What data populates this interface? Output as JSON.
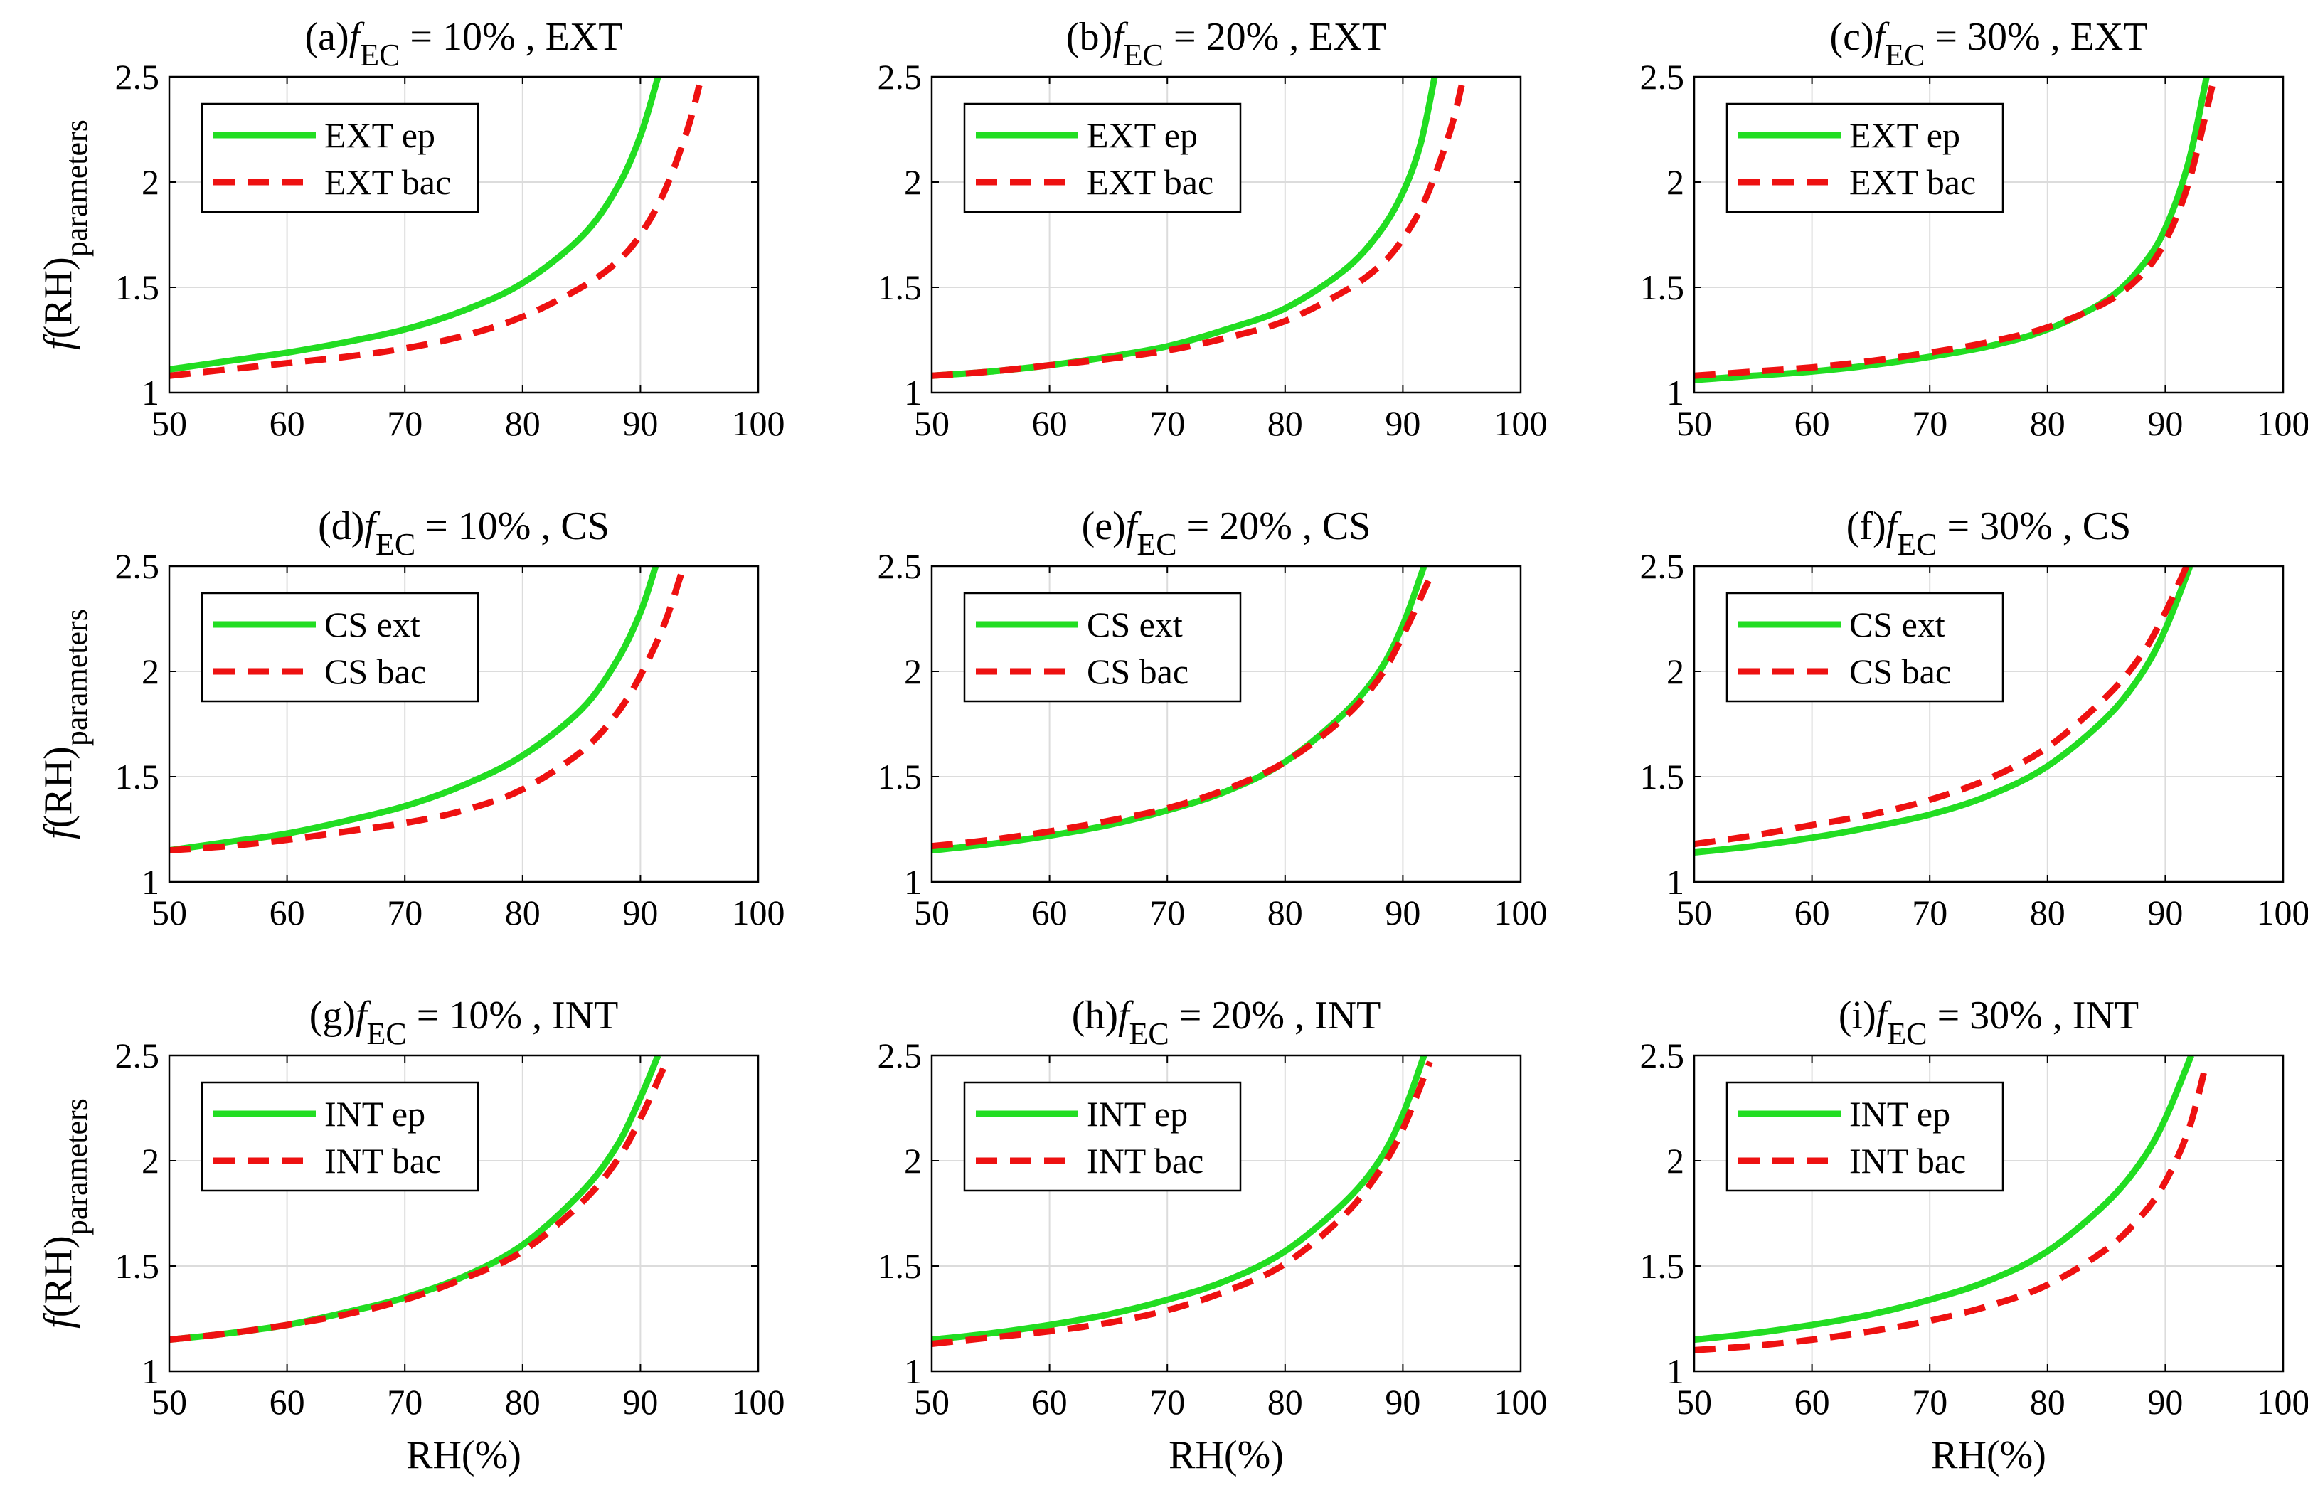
{
  "figure": {
    "x_axis_label": "RH(%)",
    "y_axis_label_main": "f(RH)",
    "y_axis_label_sub": "parameters"
  },
  "chart_data": [
    {
      "type": "line",
      "title_prefix": "(a)",
      "title_var": "f",
      "title_sub": "EC",
      "title_suffix": " = 10% , EXT",
      "xlim": [
        50,
        100
      ],
      "ylim": [
        1,
        2.5
      ],
      "xticks": [
        "50",
        "60",
        "70",
        "80",
        "90",
        "100"
      ],
      "yticks": [
        "1",
        "1.5",
        "2",
        "2.5"
      ],
      "grid": true,
      "legend_position": "top-left",
      "series": [
        {
          "name": "EXT ep",
          "color": "#22dd22",
          "style": "solid",
          "x": [
            50,
            55,
            60,
            65,
            70,
            75,
            80,
            85,
            88,
            90,
            91.5
          ],
          "y": [
            1.11,
            1.15,
            1.19,
            1.24,
            1.3,
            1.39,
            1.52,
            1.74,
            1.97,
            2.22,
            2.5
          ]
        },
        {
          "name": "EXT bac",
          "color": "#ee1111",
          "style": "dashed",
          "x": [
            50,
            55,
            60,
            65,
            70,
            75,
            80,
            85,
            88,
            90,
            92,
            94,
            95
          ],
          "y": [
            1.08,
            1.11,
            1.14,
            1.17,
            1.21,
            1.27,
            1.36,
            1.5,
            1.62,
            1.75,
            1.95,
            2.25,
            2.46
          ]
        }
      ]
    },
    {
      "type": "line",
      "title_prefix": "(b)",
      "title_var": "f",
      "title_sub": "EC",
      "title_suffix": " = 20% , EXT",
      "xlim": [
        50,
        100
      ],
      "ylim": [
        1,
        2.5
      ],
      "xticks": [
        "50",
        "60",
        "70",
        "80",
        "90",
        "100"
      ],
      "yticks": [
        "1",
        "1.5",
        "2",
        "2.5"
      ],
      "grid": true,
      "legend_position": "top-left",
      "series": [
        {
          "name": "EXT ep",
          "color": "#22dd22",
          "style": "solid",
          "x": [
            50,
            55,
            60,
            65,
            70,
            75,
            80,
            85,
            88,
            90,
            91.5,
            92.7
          ],
          "y": [
            1.08,
            1.1,
            1.13,
            1.17,
            1.22,
            1.3,
            1.4,
            1.58,
            1.76,
            1.95,
            2.18,
            2.5
          ]
        },
        {
          "name": "EXT bac",
          "color": "#ee1111",
          "style": "dashed",
          "x": [
            50,
            55,
            60,
            65,
            70,
            75,
            80,
            85,
            88,
            90,
            92,
            94,
            95
          ],
          "y": [
            1.08,
            1.1,
            1.13,
            1.16,
            1.2,
            1.26,
            1.34,
            1.48,
            1.6,
            1.73,
            1.93,
            2.24,
            2.46
          ]
        }
      ]
    },
    {
      "type": "line",
      "title_prefix": "(c)",
      "title_var": "f",
      "title_sub": "EC",
      "title_suffix": " = 30% , EXT",
      "xlim": [
        50,
        100
      ],
      "ylim": [
        1,
        2.5
      ],
      "xticks": [
        "50",
        "60",
        "70",
        "80",
        "90",
        "100"
      ],
      "yticks": [
        "1",
        "1.5",
        "2",
        "2.5"
      ],
      "grid": true,
      "legend_position": "top-left",
      "series": [
        {
          "name": "EXT ep",
          "color": "#22dd22",
          "style": "solid",
          "x": [
            50,
            55,
            60,
            65,
            70,
            75,
            80,
            85,
            88,
            90,
            92,
            93.5
          ],
          "y": [
            1.06,
            1.08,
            1.1,
            1.13,
            1.17,
            1.22,
            1.3,
            1.44,
            1.6,
            1.78,
            2.1,
            2.5
          ]
        },
        {
          "name": "EXT bac",
          "color": "#ee1111",
          "style": "dashed",
          "x": [
            50,
            55,
            60,
            65,
            70,
            75,
            80,
            85,
            88,
            90,
            92,
            94
          ],
          "y": [
            1.08,
            1.1,
            1.12,
            1.15,
            1.19,
            1.24,
            1.31,
            1.43,
            1.56,
            1.72,
            2.0,
            2.46
          ]
        }
      ]
    },
    {
      "type": "line",
      "title_prefix": "(d)",
      "title_var": "f",
      "title_sub": "EC",
      "title_suffix": " = 10% , CS",
      "xlim": [
        50,
        100
      ],
      "ylim": [
        1,
        2.5
      ],
      "xticks": [
        "50",
        "60",
        "70",
        "80",
        "90",
        "100"
      ],
      "yticks": [
        "1",
        "1.5",
        "2",
        "2.5"
      ],
      "grid": true,
      "legend_position": "top-left",
      "series": [
        {
          "name": "CS ext",
          "color": "#22dd22",
          "style": "solid",
          "x": [
            50,
            55,
            60,
            65,
            70,
            75,
            80,
            85,
            88,
            90,
            91.3
          ],
          "y": [
            1.15,
            1.19,
            1.23,
            1.29,
            1.36,
            1.46,
            1.6,
            1.82,
            2.05,
            2.28,
            2.5
          ]
        },
        {
          "name": "CS bac",
          "color": "#ee1111",
          "style": "dashed",
          "x": [
            50,
            55,
            60,
            65,
            70,
            75,
            80,
            85,
            88,
            90,
            92,
            93.5
          ],
          "y": [
            1.15,
            1.17,
            1.2,
            1.24,
            1.28,
            1.34,
            1.44,
            1.62,
            1.8,
            1.98,
            2.22,
            2.47
          ]
        }
      ]
    },
    {
      "type": "line",
      "title_prefix": "(e)",
      "title_var": "f",
      "title_sub": "EC",
      "title_suffix": " = 20% , CS",
      "xlim": [
        50,
        100
      ],
      "ylim": [
        1,
        2.5
      ],
      "xticks": [
        "50",
        "60",
        "70",
        "80",
        "90",
        "100"
      ],
      "yticks": [
        "1",
        "1.5",
        "2",
        "2.5"
      ],
      "grid": true,
      "legend_position": "top-left",
      "series": [
        {
          "name": "CS ext",
          "color": "#22dd22",
          "style": "solid",
          "x": [
            50,
            55,
            60,
            65,
            70,
            75,
            80,
            85,
            88,
            90,
            91.8
          ],
          "y": [
            1.15,
            1.18,
            1.22,
            1.27,
            1.34,
            1.43,
            1.57,
            1.8,
            2.0,
            2.22,
            2.5
          ]
        },
        {
          "name": "CS bac",
          "color": "#ee1111",
          "style": "dashed",
          "x": [
            50,
            55,
            60,
            65,
            70,
            75,
            80,
            85,
            88,
            90,
            92.5
          ],
          "y": [
            1.17,
            1.2,
            1.24,
            1.29,
            1.35,
            1.44,
            1.57,
            1.78,
            1.97,
            2.17,
            2.47
          ]
        }
      ]
    },
    {
      "type": "line",
      "title_prefix": "(f)",
      "title_var": "f",
      "title_sub": "EC",
      "title_suffix": " = 30% , CS",
      "xlim": [
        50,
        100
      ],
      "ylim": [
        1,
        2.5
      ],
      "xticks": [
        "50",
        "60",
        "70",
        "80",
        "90",
        "100"
      ],
      "yticks": [
        "1",
        "1.5",
        "2",
        "2.5"
      ],
      "grid": true,
      "legend_position": "top-left",
      "series": [
        {
          "name": "CS ext",
          "color": "#22dd22",
          "style": "solid",
          "x": [
            50,
            55,
            60,
            65,
            70,
            75,
            80,
            85,
            88,
            90,
            92.1
          ],
          "y": [
            1.14,
            1.17,
            1.21,
            1.26,
            1.32,
            1.41,
            1.55,
            1.78,
            1.99,
            2.2,
            2.5
          ]
        },
        {
          "name": "CS bac",
          "color": "#ee1111",
          "style": "dashed",
          "x": [
            50,
            55,
            60,
            65,
            70,
            75,
            80,
            85,
            88,
            90,
            91.8
          ],
          "y": [
            1.18,
            1.22,
            1.27,
            1.32,
            1.39,
            1.49,
            1.64,
            1.88,
            2.08,
            2.28,
            2.5
          ]
        }
      ]
    },
    {
      "type": "line",
      "title_prefix": "(g)",
      "title_var": "f",
      "title_sub": "EC",
      "title_suffix": " = 10% , INT",
      "xlim": [
        50,
        100
      ],
      "ylim": [
        1,
        2.5
      ],
      "xticks": [
        "50",
        "60",
        "70",
        "80",
        "90",
        "100"
      ],
      "yticks": [
        "1",
        "1.5",
        "2",
        "2.5"
      ],
      "grid": true,
      "legend_position": "top-left",
      "series": [
        {
          "name": "INT ep",
          "color": "#22dd22",
          "style": "solid",
          "x": [
            50,
            55,
            60,
            65,
            70,
            75,
            80,
            85,
            88,
            90,
            91.5
          ],
          "y": [
            1.15,
            1.18,
            1.22,
            1.28,
            1.35,
            1.45,
            1.6,
            1.85,
            2.07,
            2.3,
            2.5
          ]
        },
        {
          "name": "INT bac",
          "color": "#ee1111",
          "style": "dashed",
          "x": [
            50,
            55,
            60,
            65,
            70,
            75,
            80,
            85,
            88,
            90,
            92.2
          ],
          "y": [
            1.15,
            1.18,
            1.22,
            1.27,
            1.34,
            1.44,
            1.57,
            1.8,
            2.0,
            2.2,
            2.47
          ]
        }
      ]
    },
    {
      "type": "line",
      "title_prefix": "(h)",
      "title_var": "f",
      "title_sub": "EC",
      "title_suffix": " = 20% , INT",
      "xlim": [
        50,
        100
      ],
      "ylim": [
        1,
        2.5
      ],
      "xticks": [
        "50",
        "60",
        "70",
        "80",
        "90",
        "100"
      ],
      "yticks": [
        "1",
        "1.5",
        "2",
        "2.5"
      ],
      "grid": true,
      "legend_position": "top-left",
      "series": [
        {
          "name": "INT ep",
          "color": "#22dd22",
          "style": "solid",
          "x": [
            50,
            55,
            60,
            65,
            70,
            75,
            80,
            85,
            88,
            90,
            91.8
          ],
          "y": [
            1.15,
            1.18,
            1.22,
            1.27,
            1.34,
            1.43,
            1.57,
            1.8,
            2.0,
            2.22,
            2.5
          ]
        },
        {
          "name": "INT bac",
          "color": "#ee1111",
          "style": "dashed",
          "x": [
            50,
            55,
            60,
            65,
            70,
            75,
            80,
            85,
            88,
            90,
            92.3
          ],
          "y": [
            1.13,
            1.16,
            1.19,
            1.23,
            1.29,
            1.38,
            1.51,
            1.74,
            1.95,
            2.15,
            2.47
          ]
        }
      ]
    },
    {
      "type": "line",
      "title_prefix": "(i)",
      "title_var": "f",
      "title_sub": "EC",
      "title_suffix": " = 30% , INT",
      "xlim": [
        50,
        100
      ],
      "ylim": [
        1,
        2.5
      ],
      "xticks": [
        "50",
        "60",
        "70",
        "80",
        "90",
        "100"
      ],
      "yticks": [
        "1",
        "1.5",
        "2",
        "2.5"
      ],
      "grid": true,
      "legend_position": "top-left",
      "series": [
        {
          "name": "INT ep",
          "color": "#22dd22",
          "style": "solid",
          "x": [
            50,
            55,
            60,
            65,
            70,
            75,
            80,
            85,
            88,
            90,
            92.2
          ],
          "y": [
            1.15,
            1.18,
            1.22,
            1.27,
            1.34,
            1.43,
            1.57,
            1.8,
            2.0,
            2.2,
            2.5
          ]
        },
        {
          "name": "INT bac",
          "color": "#ee1111",
          "style": "dashed",
          "x": [
            50,
            55,
            60,
            65,
            70,
            75,
            80,
            85,
            88,
            90,
            92,
            93.5
          ],
          "y": [
            1.1,
            1.12,
            1.15,
            1.19,
            1.24,
            1.31,
            1.41,
            1.58,
            1.74,
            1.9,
            2.15,
            2.47
          ]
        }
      ]
    }
  ]
}
